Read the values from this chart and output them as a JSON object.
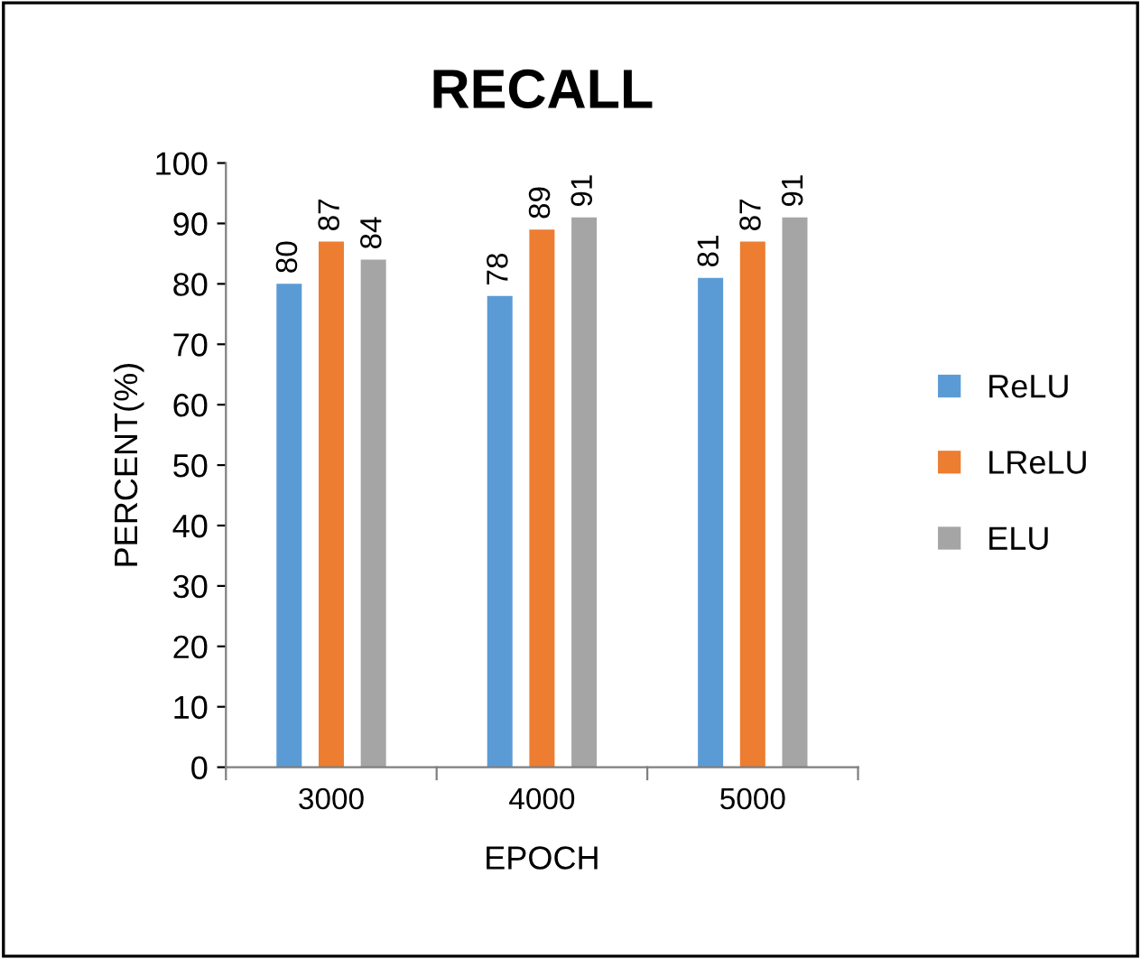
{
  "chart_data": {
    "type": "bar",
    "title": "RECALL",
    "xlabel": "EPOCH",
    "ylabel": "PERCENT(%)",
    "categories": [
      "3000",
      "4000",
      "5000"
    ],
    "series": [
      {
        "name": "ReLU",
        "color": "#5b9bd5",
        "values": [
          80,
          78,
          81
        ]
      },
      {
        "name": "LReLU",
        "color": "#ed7d31",
        "values": [
          87,
          89,
          87
        ]
      },
      {
        "name": "ELU",
        "color": "#a5a5a5",
        "values": [
          84,
          91,
          91
        ]
      }
    ],
    "ylim": [
      0,
      100
    ],
    "yticks": [
      0,
      10,
      20,
      30,
      40,
      50,
      60,
      70,
      80,
      90,
      100
    ],
    "grid": false,
    "legend": "right",
    "data_labels": true
  }
}
